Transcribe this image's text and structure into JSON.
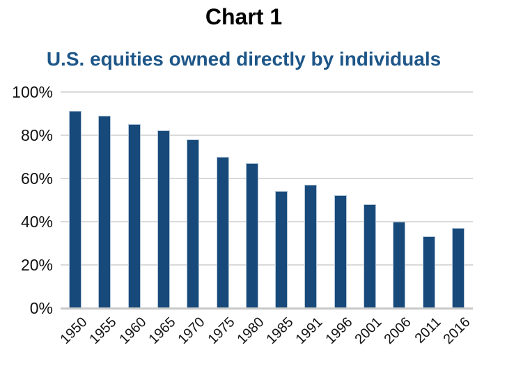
{
  "chart_data": {
    "type": "bar",
    "title": "Chart 1",
    "subtitle": "U.S. equities owned directly by individuals",
    "categories": [
      "1950",
      "1955",
      "1960",
      "1965",
      "1970",
      "1975",
      "1980",
      "1985",
      "1991",
      "1996",
      "2001",
      "2006",
      "2011",
      "2016"
    ],
    "values": [
      91,
      89,
      85,
      82,
      78,
      70,
      67,
      54,
      57,
      52,
      48,
      40,
      33,
      37
    ],
    "unit": "%",
    "xlabel": "",
    "ylabel": "",
    "ylim": [
      0,
      100
    ],
    "yticks": [
      {
        "value": 100,
        "label": "100%"
      },
      {
        "value": 80,
        "label": "80%"
      },
      {
        "value": 60,
        "label": "60%"
      },
      {
        "value": 40,
        "label": "40%"
      },
      {
        "value": 20,
        "label": "20%"
      },
      {
        "value": 0,
        "label": "0%"
      }
    ],
    "grid": "horizontal",
    "legend": "none",
    "x_tick_rotation_deg": 45,
    "colors": {
      "bar_fill": "#17497A",
      "bar_border": "#B3C6D7",
      "gridline": "#DADADA",
      "axis_line": "#C8C8C8",
      "title_color": "#000000",
      "subtitle_color": "#1D5688",
      "tick_label_color": "#111111"
    }
  }
}
